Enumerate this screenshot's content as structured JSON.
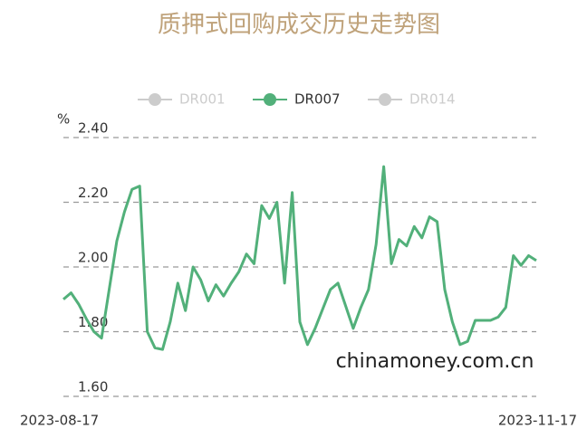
{
  "chart_data": {
    "type": "line",
    "title": "质押式回购成交历史走势图",
    "y_unit": "%",
    "watermark": "chinamoney.com.cn",
    "categories": [
      "2023-08-17",
      null,
      null,
      null,
      null,
      null,
      null,
      null,
      null,
      null,
      null,
      null,
      null,
      null,
      null,
      null,
      null,
      null,
      null,
      null,
      null,
      null,
      null,
      null,
      null,
      null,
      null,
      null,
      null,
      null,
      null,
      null,
      null,
      null,
      null,
      null,
      null,
      null,
      null,
      null,
      null,
      null,
      null,
      null,
      null,
      null,
      null,
      null,
      null,
      null,
      null,
      null,
      null,
      null,
      null,
      null,
      null,
      null,
      null,
      null,
      null,
      null,
      "2023-11-17"
    ],
    "series": [
      {
        "name": "DR001",
        "color": "#cccccc",
        "visible": false
      },
      {
        "name": "DR007",
        "color": "#52b07a",
        "visible": true,
        "values": [
          1.9,
          1.92,
          1.885,
          1.84,
          1.8,
          1.78,
          1.93,
          2.08,
          2.17,
          2.24,
          2.25,
          1.8,
          1.75,
          1.745,
          1.83,
          1.95,
          1.865,
          2.0,
          1.96,
          1.895,
          1.945,
          1.91,
          1.95,
          1.985,
          2.04,
          2.01,
          2.19,
          2.15,
          2.2,
          1.95,
          2.23,
          1.83,
          1.76,
          1.81,
          1.87,
          1.93,
          1.95,
          1.88,
          1.81,
          1.875,
          1.93,
          2.07,
          2.31,
          2.01,
          2.085,
          2.065,
          2.125,
          2.09,
          2.155,
          2.14,
          1.93,
          1.83,
          1.76,
          1.77,
          1.835,
          1.835,
          1.835,
          1.845,
          1.875,
          2.035,
          2.005,
          2.035,
          2.02
        ]
      },
      {
        "name": "DR014",
        "color": "#cccccc",
        "visible": false
      }
    ],
    "ylim": [
      1.6,
      2.4
    ],
    "yticks": [
      {
        "value": 1.6,
        "label": "1.60"
      },
      {
        "value": 1.8,
        "label": "1.80"
      },
      {
        "value": 2.0,
        "label": "2.00"
      },
      {
        "value": 2.2,
        "label": "2.20"
      },
      {
        "value": 2.4,
        "label": "2.40"
      }
    ],
    "grid": true,
    "legend": "top"
  }
}
